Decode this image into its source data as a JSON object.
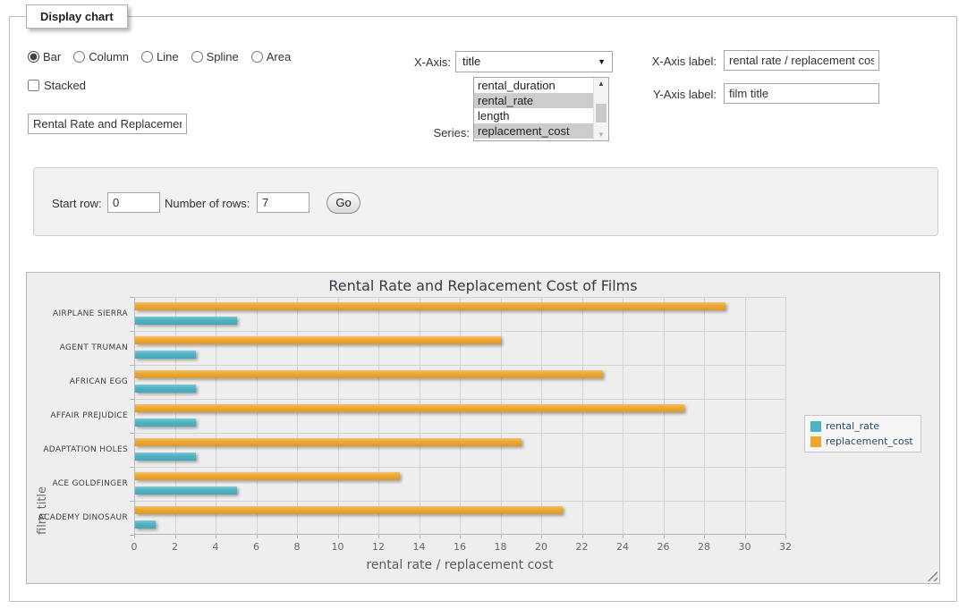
{
  "panel": {
    "legend": "Display chart"
  },
  "controls": {
    "chart_types": [
      {
        "label": "Bar",
        "selected": true
      },
      {
        "label": "Column",
        "selected": false
      },
      {
        "label": "Line",
        "selected": false
      },
      {
        "label": "Spline",
        "selected": false
      },
      {
        "label": "Area",
        "selected": false
      }
    ],
    "stacked": {
      "label": "Stacked",
      "checked": false
    },
    "title_input": {
      "value": "Rental Rate and Replacement Cost of Films"
    },
    "x_axis": {
      "label": "X-Axis:",
      "selected_value": "title"
    },
    "series_list": {
      "label": "Series:",
      "options": [
        {
          "label": "rental_duration",
          "selected": false
        },
        {
          "label": "rental_rate",
          "selected": true
        },
        {
          "label": "length",
          "selected": false
        },
        {
          "label": "replacement_cost",
          "selected": true
        }
      ]
    },
    "x_axis_label": {
      "label": "X-Axis label:",
      "value": "rental rate / replacement cost"
    },
    "y_axis_label": {
      "label": "Y-Axis label:",
      "value": "film title"
    }
  },
  "row_controls": {
    "start_row": {
      "label": "Start row:",
      "value": "0"
    },
    "num_rows": {
      "label": "Number of rows:",
      "value": "7"
    },
    "go_label": "Go"
  },
  "chart_data": {
    "type": "bar",
    "orientation": "horizontal",
    "title": "Rental Rate and Replacement Cost of Films",
    "xlabel": "rental rate / replacement cost",
    "ylabel": "film title",
    "categories": [
      "AIRPLANE SIERRA",
      "AGENT TRUMAN",
      "AFRICAN EGG",
      "AFFAIR PREJUDICE",
      "ADAPTATION HOLES",
      "ACE GOLDFINGER",
      "ACADEMY DINOSAUR"
    ],
    "series": [
      {
        "name": "rental_rate",
        "color": "#4db2c2",
        "values": [
          4.99,
          2.99,
          2.99,
          2.99,
          2.99,
          4.99,
          0.99
        ]
      },
      {
        "name": "replacement_cost",
        "color": "#eda62f",
        "values": [
          28.99,
          17.99,
          22.99,
          26.99,
          18.99,
          12.99,
          20.99
        ]
      }
    ],
    "xlim": [
      0,
      32
    ],
    "x_ticks": [
      0,
      2,
      4,
      6,
      8,
      10,
      12,
      14,
      16,
      18,
      20,
      22,
      24,
      26,
      28,
      30,
      32
    ],
    "grid": true,
    "legend_position": "right-middle",
    "bar_order_top_to_bottom": [
      "replacement_cost",
      "rental_rate"
    ]
  }
}
